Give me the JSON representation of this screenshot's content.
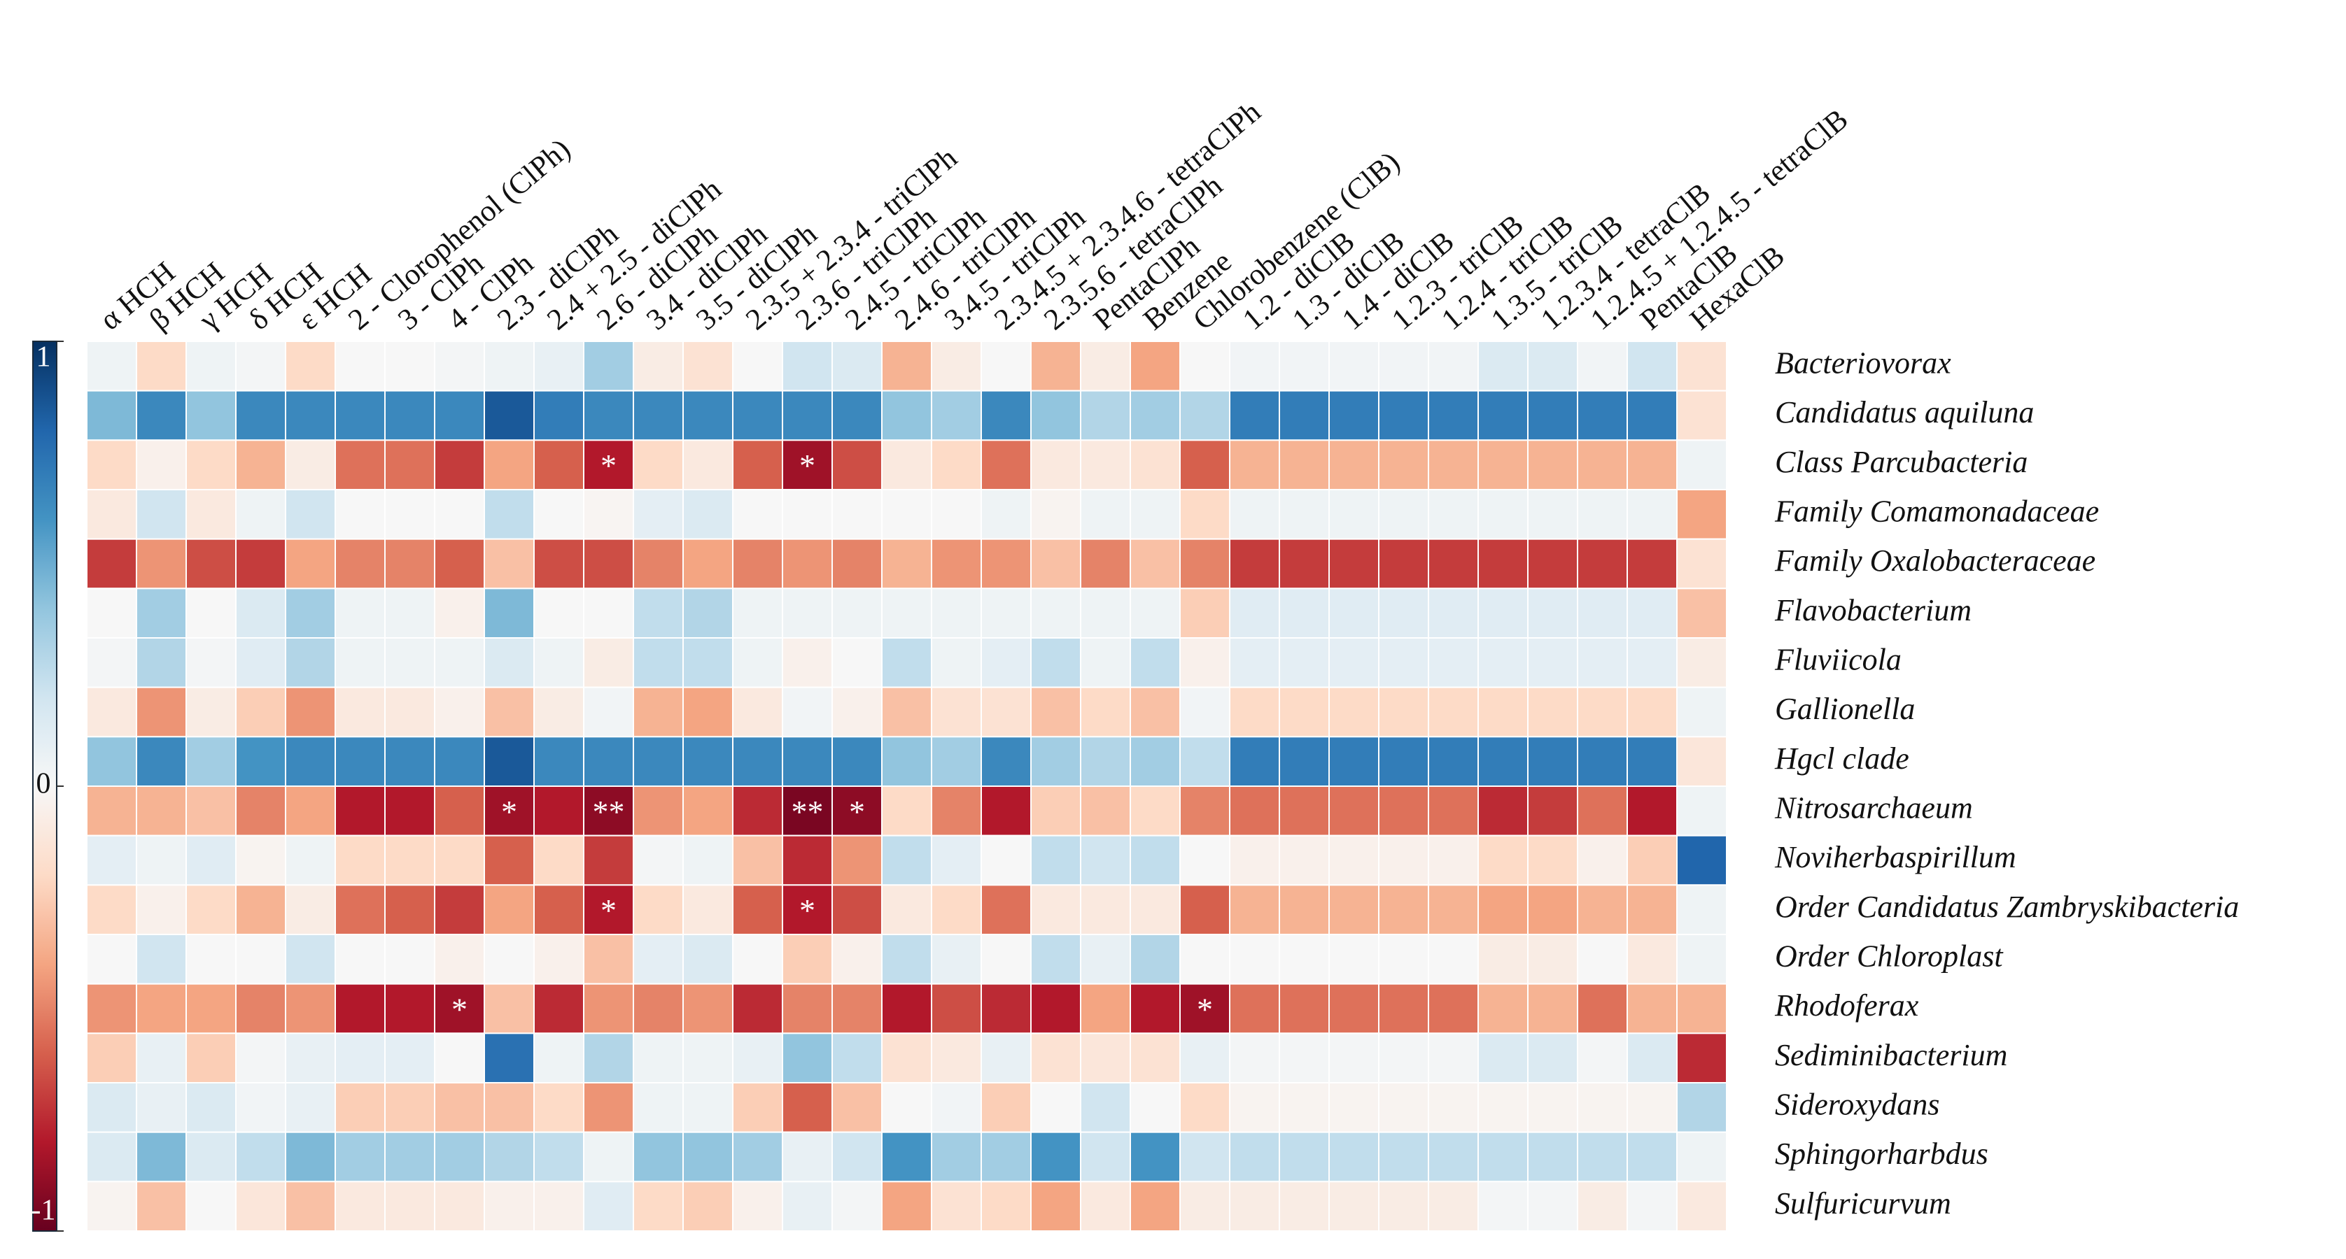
{
  "chart_data": {
    "type": "heatmap",
    "colormap": "RdBu",
    "vlim": [
      -1,
      1
    ],
    "yticks": [
      -1,
      0,
      1
    ],
    "columns": [
      "α HCH",
      "β HCH",
      "γ HCH",
      "δ HCH",
      "ε HCH",
      "2 - Clorophenol (ClPh)",
      "3 - ClPh",
      "4 - ClPh",
      "2.3 - diClPh",
      "2.4 + 2.5 - diClPh",
      "2.6 - diClPh",
      "3.4 - diClPh",
      "3.5 - diClPh",
      "2.3.5 + 2.3.4 - triClPh",
      "2.3.6 - triClPh",
      "2.4.5 - triClPh",
      "2.4.6 - triClPh",
      "3.4.5 - triClPh",
      "2.3.4.5 + 2.3.4.6 - tetraClPh",
      "2.3.5.6 - tetraClPh",
      "PentaClPh",
      "Benzene",
      "Chlorobenzene (ClB)",
      "1.2 - diClB",
      "1.3 - diClB",
      "1.4 - diClB",
      "1.2.3 - triClB",
      "1.2.4 - triClB",
      "1.3.5 - triClB",
      "1.2.3.4 - tetraClB",
      "1.2.4.5 + 1.2.4.5 - tetraClB",
      "PentaClB",
      "HexaClB"
    ],
    "series": [
      {
        "name": "Bacteriovorax",
        "values": [
          0.05,
          -0.2,
          0.05,
          0.02,
          -0.2,
          0,
          0,
          0.02,
          0.05,
          0.08,
          0.35,
          -0.08,
          -0.15,
          0,
          0.2,
          0.15,
          -0.35,
          -0.08,
          0,
          -0.35,
          -0.08,
          -0.4,
          0,
          0.03,
          0.03,
          0.03,
          0.03,
          0.03,
          0.15,
          0.15,
          0.03,
          0.2,
          -0.15
        ]
      },
      {
        "name": "Candidatus aquiluna",
        "values": [
          0.45,
          0.65,
          0.4,
          0.65,
          0.65,
          0.65,
          0.65,
          0.65,
          0.85,
          0.7,
          0.65,
          0.65,
          0.65,
          0.65,
          0.65,
          0.65,
          0.4,
          0.35,
          0.65,
          0.4,
          0.3,
          0.35,
          0.3,
          0.7,
          0.7,
          0.7,
          0.7,
          0.7,
          0.7,
          0.7,
          0.7,
          0.7,
          -0.15
        ]
      },
      {
        "name": "Class Parcubacteria",
        "values": [
          -0.2,
          -0.05,
          -0.2,
          -0.35,
          -0.08,
          -0.55,
          -0.55,
          -0.7,
          -0.4,
          -0.6,
          -0.8,
          -0.2,
          -0.1,
          -0.6,
          -0.85,
          -0.65,
          -0.1,
          -0.2,
          -0.55,
          -0.1,
          -0.1,
          -0.15,
          -0.6,
          -0.35,
          -0.35,
          -0.35,
          -0.35,
          -0.35,
          -0.35,
          -0.35,
          -0.35,
          -0.35,
          0.05
        ],
        "labels": [
          null,
          null,
          null,
          null,
          null,
          null,
          null,
          null,
          null,
          null,
          "*",
          null,
          null,
          null,
          "*",
          null,
          null,
          null,
          null,
          null,
          null,
          null,
          null,
          null,
          null,
          null,
          null,
          null,
          null,
          null,
          null,
          null,
          null
        ]
      },
      {
        "name": "Family Comamonadaceae",
        "values": [
          -0.1,
          0.2,
          -0.1,
          0.05,
          0.2,
          0,
          0,
          0,
          0.25,
          0,
          -0.02,
          0.1,
          0.15,
          0,
          0,
          0,
          0,
          0,
          0.05,
          -0.03,
          0.05,
          0.05,
          -0.2,
          0.05,
          0.05,
          0.05,
          0.05,
          0.05,
          0.05,
          0.05,
          0.05,
          0.05,
          -0.4
        ]
      },
      {
        "name": "Family Oxalobacteraceae",
        "values": [
          -0.7,
          -0.45,
          -0.65,
          -0.7,
          -0.4,
          -0.5,
          -0.5,
          -0.6,
          -0.3,
          -0.65,
          -0.65,
          -0.5,
          -0.4,
          -0.5,
          -0.45,
          -0.5,
          -0.35,
          -0.45,
          -0.45,
          -0.3,
          -0.5,
          -0.3,
          -0.5,
          -0.7,
          -0.7,
          -0.7,
          -0.7,
          -0.7,
          -0.7,
          -0.7,
          -0.7,
          -0.7,
          -0.15
        ]
      },
      {
        "name": "Flavobacterium",
        "values": [
          0,
          0.35,
          0,
          0.15,
          0.35,
          0.05,
          0.05,
          -0.05,
          0.45,
          0,
          0,
          0.25,
          0.3,
          0.05,
          0.05,
          0.05,
          0.05,
          0.05,
          0.05,
          0.05,
          0.05,
          0.05,
          -0.25,
          0.12,
          0.12,
          0.12,
          0.12,
          0.12,
          0.12,
          0.12,
          0.12,
          0.12,
          -0.3
        ]
      },
      {
        "name": "Fluviicola",
        "values": [
          0.02,
          0.3,
          0.02,
          0.12,
          0.3,
          0.05,
          0.05,
          0.05,
          0.15,
          0.05,
          -0.08,
          0.25,
          0.25,
          0.05,
          -0.05,
          0,
          0.25,
          0.05,
          0.1,
          0.25,
          0.05,
          0.25,
          -0.05,
          0.1,
          0.1,
          0.1,
          0.1,
          0.1,
          0.1,
          0.1,
          0.1,
          0.1,
          -0.08
        ]
      },
      {
        "name": "Gallionella",
        "values": [
          -0.1,
          -0.45,
          -0.08,
          -0.25,
          -0.45,
          -0.1,
          -0.1,
          -0.05,
          -0.3,
          -0.08,
          0.03,
          -0.35,
          -0.4,
          -0.1,
          0.03,
          -0.05,
          -0.3,
          -0.15,
          -0.15,
          -0.3,
          -0.2,
          -0.3,
          0.03,
          -0.2,
          -0.2,
          -0.2,
          -0.2,
          -0.2,
          -0.2,
          -0.2,
          -0.2,
          -0.2,
          0.05
        ]
      },
      {
        "name": "Hgcl clade",
        "values": [
          0.4,
          0.65,
          0.35,
          0.6,
          0.65,
          0.65,
          0.65,
          0.65,
          0.85,
          0.65,
          0.65,
          0.65,
          0.65,
          0.65,
          0.65,
          0.65,
          0.4,
          0.35,
          0.65,
          0.35,
          0.3,
          0.35,
          0.25,
          0.7,
          0.7,
          0.7,
          0.7,
          0.7,
          0.7,
          0.7,
          0.7,
          0.7,
          -0.12
        ]
      },
      {
        "name": "Nitrosarchaeum",
        "values": [
          -0.35,
          -0.35,
          -0.3,
          -0.5,
          -0.4,
          -0.8,
          -0.8,
          -0.6,
          -0.85,
          -0.8,
          -0.9,
          -0.45,
          -0.4,
          -0.75,
          -0.95,
          -0.9,
          -0.2,
          -0.5,
          -0.8,
          -0.25,
          -0.3,
          -0.2,
          -0.5,
          -0.55,
          -0.55,
          -0.55,
          -0.55,
          -0.55,
          -0.75,
          -0.7,
          -0.55,
          -0.8,
          0.05
        ],
        "labels": [
          null,
          null,
          null,
          null,
          null,
          null,
          null,
          null,
          "*",
          null,
          "**",
          null,
          null,
          null,
          "**",
          "*",
          null,
          null,
          null,
          null,
          null,
          null,
          null,
          null,
          null,
          null,
          null,
          null,
          null,
          null,
          null,
          null,
          null
        ]
      },
      {
        "name": "Noviherbaspirillum",
        "values": [
          0.1,
          0.05,
          0.12,
          -0.03,
          0.05,
          -0.2,
          -0.2,
          -0.2,
          -0.6,
          -0.2,
          -0.7,
          0.02,
          0.05,
          -0.3,
          -0.75,
          -0.45,
          0.25,
          0.1,
          0,
          0.25,
          0.2,
          0.25,
          0,
          -0.05,
          -0.05,
          -0.05,
          -0.05,
          -0.05,
          -0.2,
          -0.2,
          -0.05,
          -0.25,
          0.8
        ]
      },
      {
        "name": "Order Candidatus Zambryskibacteria",
        "values": [
          -0.2,
          -0.05,
          -0.2,
          -0.35,
          -0.08,
          -0.55,
          -0.6,
          -0.7,
          -0.4,
          -0.6,
          -0.8,
          -0.2,
          -0.1,
          -0.6,
          -0.8,
          -0.65,
          -0.1,
          -0.2,
          -0.55,
          -0.1,
          -0.1,
          -0.1,
          -0.6,
          -0.35,
          -0.35,
          -0.35,
          -0.35,
          -0.35,
          -0.4,
          -0.4,
          -0.35,
          -0.35,
          0.05
        ],
        "labels": [
          null,
          null,
          null,
          null,
          null,
          null,
          null,
          null,
          null,
          null,
          "*",
          null,
          null,
          null,
          "*",
          null,
          null,
          null,
          null,
          null,
          null,
          null,
          null,
          null,
          null,
          null,
          null,
          null,
          null,
          null,
          null,
          null,
          null
        ]
      },
      {
        "name": "Order Chloroplast",
        "values": [
          0,
          0.2,
          0,
          0,
          0.2,
          0,
          0,
          -0.05,
          0,
          -0.05,
          -0.3,
          0.1,
          0.15,
          0,
          -0.25,
          -0.05,
          0.25,
          0.08,
          0,
          0.25,
          0.08,
          0.3,
          0,
          0,
          0,
          0,
          0,
          0,
          -0.08,
          -0.08,
          0,
          -0.1,
          0.05
        ]
      },
      {
        "name": "Rhodoferax",
        "values": [
          -0.45,
          -0.4,
          -0.4,
          -0.5,
          -0.45,
          -0.8,
          -0.8,
          -0.85,
          -0.3,
          -0.75,
          -0.45,
          -0.5,
          -0.45,
          -0.75,
          -0.5,
          -0.5,
          -0.8,
          -0.65,
          -0.75,
          -0.8,
          -0.4,
          -0.8,
          -0.85,
          -0.55,
          -0.55,
          -0.55,
          -0.55,
          -0.55,
          -0.35,
          -0.35,
          -0.55,
          -0.35,
          -0.35
        ],
        "labels": [
          null,
          null,
          null,
          null,
          null,
          null,
          null,
          "*",
          null,
          null,
          null,
          null,
          null,
          null,
          null,
          null,
          null,
          null,
          null,
          null,
          null,
          null,
          "*",
          null,
          null,
          null,
          null,
          null,
          null,
          null,
          null,
          null,
          null
        ]
      },
      {
        "name": "Sediminibacterium",
        "values": [
          -0.25,
          0.08,
          -0.25,
          0.02,
          0.08,
          0.1,
          0.1,
          0,
          0.75,
          0.05,
          0.3,
          0.05,
          0.05,
          0.08,
          0.4,
          0.25,
          -0.15,
          -0.1,
          0.08,
          -0.15,
          -0.12,
          -0.15,
          0.08,
          0.02,
          0.02,
          0.02,
          0.02,
          0.02,
          0.15,
          0.15,
          0.02,
          0.15,
          -0.75
        ]
      },
      {
        "name": "Sideroxydans",
        "values": [
          0.15,
          0.08,
          0.15,
          0.03,
          0.08,
          -0.25,
          -0.25,
          -0.3,
          -0.3,
          -0.2,
          -0.45,
          0.05,
          0.05,
          -0.25,
          -0.6,
          -0.3,
          0,
          0.03,
          -0.25,
          0,
          0.2,
          0,
          -0.2,
          -0.03,
          -0.03,
          -0.03,
          -0.03,
          -0.03,
          -0.03,
          -0.03,
          -0.03,
          -0.03,
          0.3
        ]
      },
      {
        "name": "Sphingorharbdus",
        "values": [
          0.15,
          0.45,
          0.15,
          0.25,
          0.45,
          0.35,
          0.35,
          0.35,
          0.3,
          0.25,
          0.05,
          0.4,
          0.4,
          0.35,
          0.08,
          0.2,
          0.6,
          0.35,
          0.35,
          0.6,
          0.2,
          0.6,
          0.2,
          0.25,
          0.25,
          0.25,
          0.25,
          0.25,
          0.25,
          0.25,
          0.25,
          0.25,
          0.05
        ]
      },
      {
        "name": "Sulfuricurvum",
        "values": [
          -0.03,
          -0.3,
          0,
          -0.12,
          -0.3,
          -0.1,
          -0.1,
          -0.1,
          -0.05,
          -0.05,
          0.12,
          -0.2,
          -0.25,
          -0.05,
          0.08,
          0.02,
          -0.4,
          -0.15,
          -0.2,
          -0.4,
          -0.1,
          -0.4,
          -0.08,
          -0.08,
          -0.08,
          -0.08,
          -0.08,
          -0.08,
          0.02,
          0.02,
          -0.08,
          0.02,
          -0.1
        ]
      }
    ]
  }
}
